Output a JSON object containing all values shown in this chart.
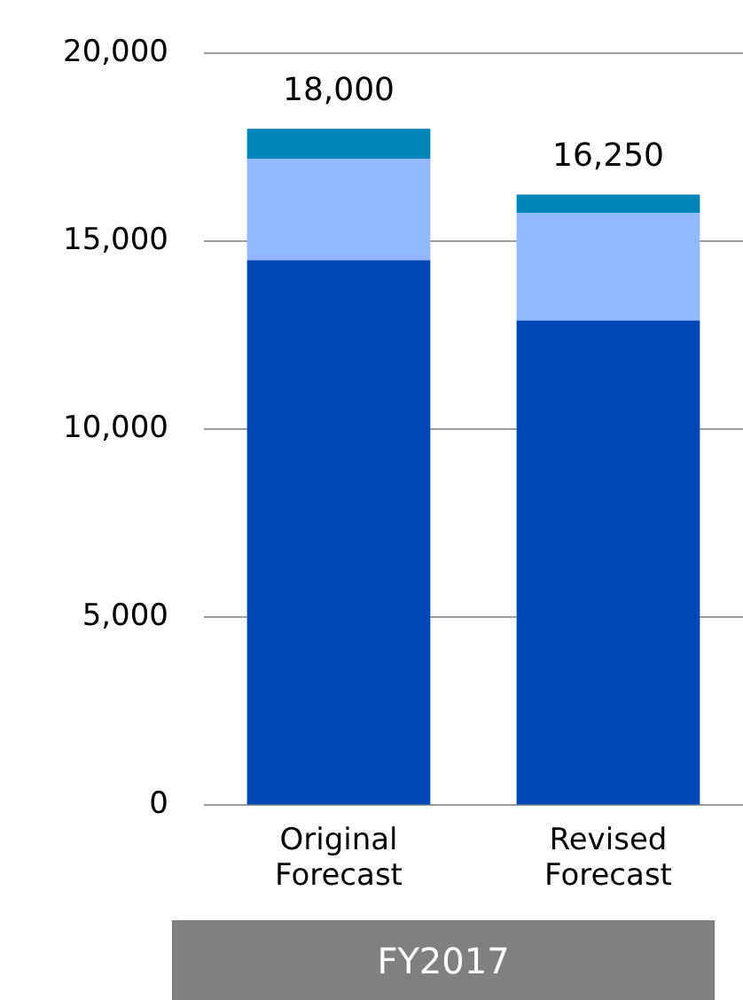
{
  "chart_data": {
    "type": "bar",
    "stacked": true,
    "categories": [
      "Original Forecast",
      "Revised Forecast"
    ],
    "series": [
      {
        "color": "#0046b4",
        "values": [
          14500,
          12900
        ]
      },
      {
        "color": "#92b9ff",
        "values": [
          2700,
          2850
        ]
      },
      {
        "color": "#0084b8",
        "values": [
          800,
          500
        ]
      }
    ],
    "totals": [
      "18,000",
      "16,250"
    ],
    "ylim": [
      0,
      20000
    ],
    "yticks": [
      {
        "value": 0,
        "label": "0"
      },
      {
        "value": 5000,
        "label": "5,000"
      },
      {
        "value": 10000,
        "label": "10,000"
      },
      {
        "value": 15000,
        "label": "15,000"
      },
      {
        "value": 20000,
        "label": "20,000"
      }
    ],
    "grid": "y",
    "legend": false,
    "annotations": [
      "FY2017"
    ]
  }
}
